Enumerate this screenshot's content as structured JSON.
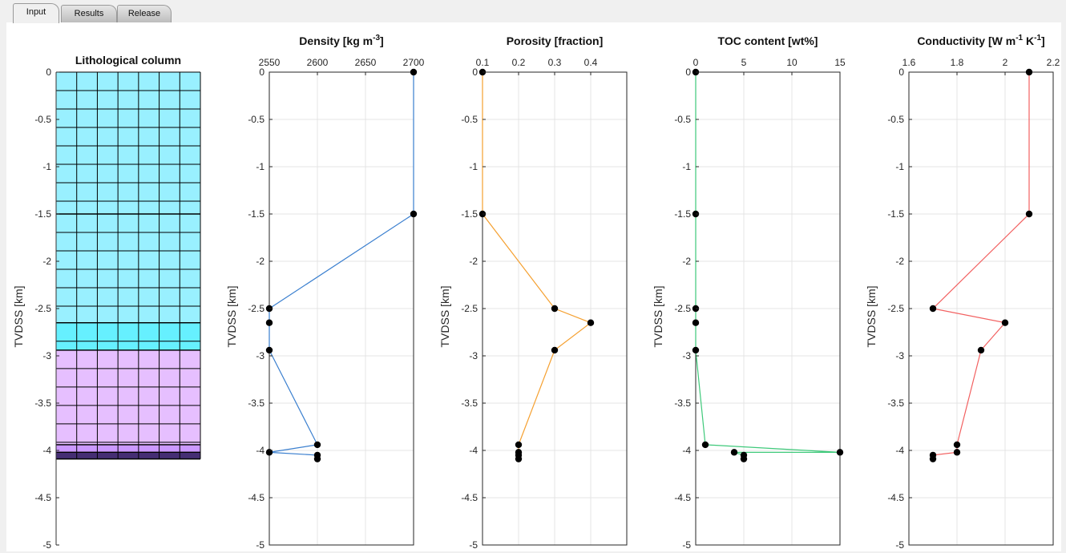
{
  "tabs": [
    {
      "label": "Input",
      "active": true
    },
    {
      "label": "Results",
      "active": false
    },
    {
      "label": "Release",
      "active": false
    }
  ],
  "chart_data": [
    {
      "type": "stacked-column",
      "title": "Lithological column",
      "ylabel": "TVDSS [km]",
      "ylim": [
        -5,
        0
      ],
      "yticks": [
        0,
        -0.5,
        -1,
        -1.5,
        -2,
        -2.5,
        -3,
        -3.5,
        -4,
        -4.5,
        -5
      ],
      "layers": [
        {
          "top": 0,
          "base": -1.5,
          "color": "#99f0ff"
        },
        {
          "top": -1.5,
          "base": -2.65,
          "color": "#99f0ff"
        },
        {
          "top": -2.65,
          "base": -2.94,
          "color": "#66f0ff"
        },
        {
          "top": -2.94,
          "base": -3.94,
          "color": "#e6bfff"
        },
        {
          "top": -3.94,
          "base": -4.02,
          "color": "#cc99ff"
        },
        {
          "top": -4.02,
          "base": -4.09,
          "color": "#9966ff"
        }
      ]
    },
    {
      "type": "line",
      "title": "Density [kg m",
      "title_sup": "-3",
      "title_end": "]",
      "ylabel": "TVDSS [km]",
      "xlim": [
        2550,
        2700
      ],
      "xticks": [
        "2550",
        "2600",
        "2650",
        "2700"
      ],
      "ylim": [
        -5,
        0
      ],
      "yticks": [
        0,
        -0.5,
        -1,
        -1.5,
        -2,
        -2.5,
        -3,
        -3.5,
        -4,
        -4.5,
        -5
      ],
      "color": "#3a7fcf",
      "x": [
        2700,
        2700,
        2550,
        2550,
        2550,
        2600,
        2550,
        2600,
        2600
      ],
      "y": [
        0,
        -1.5,
        -2.5,
        -2.65,
        -2.94,
        -3.94,
        -4.02,
        -4.05,
        -4.09
      ]
    },
    {
      "type": "line",
      "title": "Porosity [fraction]",
      "ylabel": "TVDSS [km]",
      "xlim": [
        0.1,
        0.5
      ],
      "xticks": [
        "0.1",
        "0.2",
        "0.3",
        "0.4"
      ],
      "ylim": [
        -5,
        0
      ],
      "yticks": [
        0,
        -0.5,
        -1,
        -1.5,
        -2,
        -2.5,
        -3,
        -3.5,
        -4,
        -4.5,
        -5
      ],
      "color": "#f5a030",
      "x": [
        0.1,
        0.1,
        0.3,
        0.4,
        0.3,
        0.2,
        0.2,
        0.2,
        0.2
      ],
      "y": [
        0,
        -1.5,
        -2.5,
        -2.65,
        -2.94,
        -3.94,
        -4.02,
        -4.05,
        -4.09
      ]
    },
    {
      "type": "line",
      "title": "TOC  content [wt%]",
      "ylabel": "TVDSS [km]",
      "xlim": [
        0,
        15
      ],
      "xticks": [
        "0",
        "5",
        "10",
        "15"
      ],
      "ylim": [
        -5,
        0
      ],
      "yticks": [
        0,
        -0.5,
        -1,
        -1.5,
        -2,
        -2.5,
        -3,
        -3.5,
        -4,
        -4.5,
        -5
      ],
      "color": "#3ec97a",
      "x": [
        0,
        0,
        0,
        0,
        0,
        1,
        15,
        4,
        5,
        5
      ],
      "y": [
        0,
        -1.5,
        -2.5,
        -2.65,
        -2.94,
        -3.94,
        -4.02,
        -4.02,
        -4.05,
        -4.09
      ]
    },
    {
      "type": "line",
      "title": "Conductivity [W m",
      "title_sup": "-1",
      "title_mid": " K",
      "title_sup2": "-1",
      "title_end": "]",
      "ylabel": "TVDSS [km]",
      "xlim": [
        1.6,
        2.2
      ],
      "xticks": [
        "1.6",
        "1.8",
        "2",
        "2.2"
      ],
      "ylim": [
        -5,
        0
      ],
      "yticks": [
        0,
        -0.5,
        -1,
        -1.5,
        -2,
        -2.5,
        -3,
        -3.5,
        -4,
        -4.5,
        -5
      ],
      "color": "#f26060",
      "x": [
        2.1,
        2.1,
        1.7,
        2.0,
        1.9,
        1.8,
        1.8,
        1.7,
        1.7
      ],
      "y": [
        0,
        -1.5,
        -2.5,
        -2.65,
        -2.94,
        -3.94,
        -4.02,
        -4.05,
        -4.09
      ]
    }
  ]
}
